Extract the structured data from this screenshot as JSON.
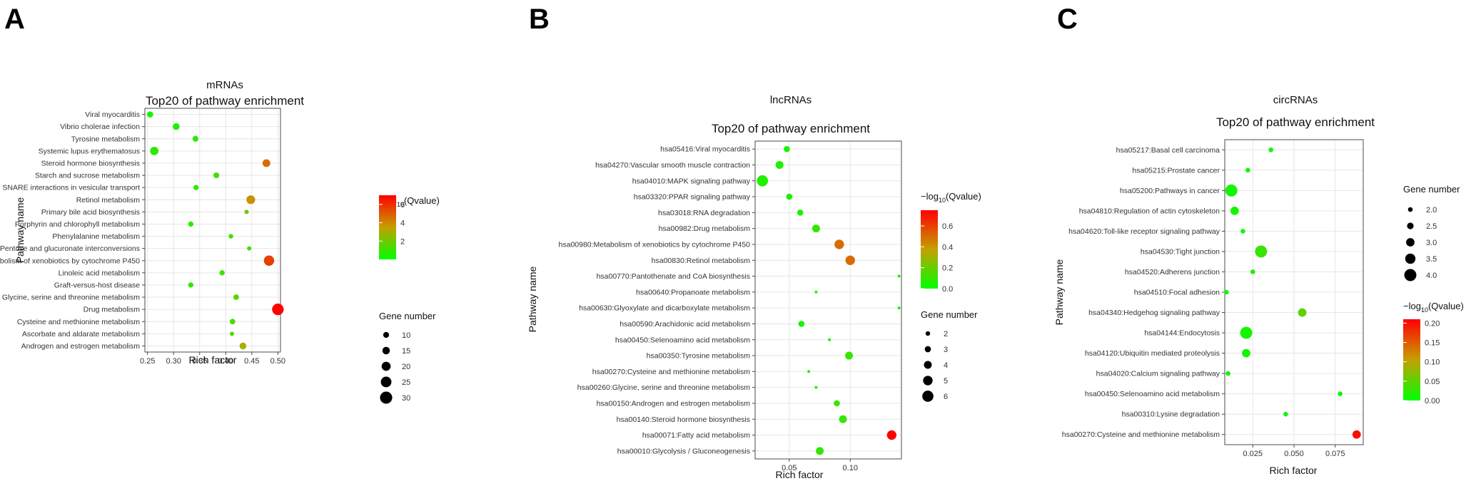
{
  "chart_data": [
    {
      "panel": "A",
      "type": "scatter",
      "title": "mRNAs",
      "subtitle": "Top20 of pathway enrichment",
      "xlabel": "Rich factor",
      "ylabel": "Pathway name",
      "xlim": [
        0.245,
        0.505
      ],
      "xticks": [
        {
          "value": 0.25,
          "label": "0.25"
        },
        {
          "value": 0.3,
          "label": "0.30"
        },
        {
          "value": 0.35,
          "label": "0.35"
        },
        {
          "value": 0.4,
          "label": "0.40"
        },
        {
          "value": 0.45,
          "label": "0.45"
        },
        {
          "value": 0.5,
          "label": "0.50"
        }
      ],
      "color_legend": {
        "title_pre": "−log",
        "title_sub": "10",
        "title_post": "(Qvalue)",
        "min": 0,
        "max": 7,
        "ticks": [
          {
            "value": 2,
            "label": "2"
          },
          {
            "value": 4,
            "label": "4"
          },
          {
            "value": 6,
            "label": "6"
          }
        ]
      },
      "size_legend": {
        "title": "Gene number",
        "min": 5,
        "max": 32,
        "ticks": [
          {
            "value": 10,
            "label": "10"
          },
          {
            "value": 15,
            "label": "15"
          },
          {
            "value": 20,
            "label": "20"
          },
          {
            "value": 25,
            "label": "25"
          },
          {
            "value": 30,
            "label": "30"
          }
        ]
      },
      "points": [
        {
          "pathway": "Viral myocarditis",
          "rich_factor": 0.255,
          "qvalue": 0.4,
          "genes": 11
        },
        {
          "pathway": "Vibrio cholerae infection",
          "rich_factor": 0.305,
          "qvalue": 0.5,
          "genes": 13
        },
        {
          "pathway": "Tyrosine metabolism",
          "rich_factor": 0.342,
          "qvalue": 0.8,
          "genes": 10
        },
        {
          "pathway": "Systemic lupus erythematosus",
          "rich_factor": 0.263,
          "qvalue": 0.8,
          "genes": 18
        },
        {
          "pathway": "Steroid hormone biosynthesis",
          "rich_factor": 0.478,
          "qvalue": 4.6,
          "genes": 16
        },
        {
          "pathway": "Starch and sucrose metabolism",
          "rich_factor": 0.382,
          "qvalue": 1.3,
          "genes": 10
        },
        {
          "pathway": "SNARE interactions in vesicular transport",
          "rich_factor": 0.343,
          "qvalue": 0.8,
          "genes": 8
        },
        {
          "pathway": "Retinol metabolism",
          "rich_factor": 0.448,
          "qvalue": 3.8,
          "genes": 19
        },
        {
          "pathway": "Primary bile acid biosynthesis",
          "rich_factor": 0.44,
          "qvalue": 1.8,
          "genes": 5
        },
        {
          "pathway": "Porphyrin and chlorophyll metabolism",
          "rich_factor": 0.333,
          "qvalue": 0.8,
          "genes": 8
        },
        {
          "pathway": "Phenylalanine metabolism",
          "rich_factor": 0.41,
          "qvalue": 1.0,
          "genes": 6
        },
        {
          "pathway": "Pentose and glucuronate interconversions",
          "rich_factor": 0.445,
          "qvalue": 1.3,
          "genes": 5
        },
        {
          "pathway": "Metabolism of xenobiotics by cytochrome P450",
          "rich_factor": 0.483,
          "qvalue": 5.6,
          "genes": 24
        },
        {
          "pathway": "Linoleic acid metabolism",
          "rich_factor": 0.393,
          "qvalue": 1.0,
          "genes": 8
        },
        {
          "pathway": "Graft-versus-host disease",
          "rich_factor": 0.333,
          "qvalue": 0.8,
          "genes": 8
        },
        {
          "pathway": "Glycine, serine and threonine metabolism",
          "rich_factor": 0.42,
          "qvalue": 1.6,
          "genes": 9
        },
        {
          "pathway": "Drug metabolism",
          "rich_factor": 0.5,
          "qvalue": 7.0,
          "genes": 28
        },
        {
          "pathway": "Cysteine and methionine metabolism",
          "rich_factor": 0.413,
          "qvalue": 1.3,
          "genes": 9
        },
        {
          "pathway": "Ascorbate and aldarate metabolism",
          "rich_factor": 0.412,
          "qvalue": 1.4,
          "genes": 5
        },
        {
          "pathway": "Androgen and estrogen metabolism",
          "rich_factor": 0.433,
          "qvalue": 3.0,
          "genes": 13
        }
      ]
    },
    {
      "panel": "B",
      "type": "scatter",
      "title": "lncRNAs",
      "subtitle": "Top20 of pathway enrichment",
      "xlabel": "Rich factor",
      "ylabel": "Pathway name",
      "xlim": [
        0.022,
        0.142
      ],
      "xticks": [
        {
          "value": 0.05,
          "label": "0.05"
        },
        {
          "value": 0.1,
          "label": "0.10"
        }
      ],
      "color_legend": {
        "title_pre": "−log",
        "title_sub": "10",
        "title_post": "(Qvalue)",
        "min": 0,
        "max": 0.75,
        "ticks": [
          {
            "value": 0,
            "label": "0.0"
          },
          {
            "value": 0.2,
            "label": "0.2"
          },
          {
            "value": 0.4,
            "label": "0.4"
          },
          {
            "value": 0.6,
            "label": "0.6"
          }
        ]
      },
      "size_legend": {
        "title": "Gene number",
        "min": 1,
        "max": 7,
        "ticks": [
          {
            "value": 2,
            "label": "2"
          },
          {
            "value": 3,
            "label": "3"
          },
          {
            "value": 4,
            "label": "4"
          },
          {
            "value": 5,
            "label": "5"
          },
          {
            "value": 6,
            "label": "6"
          }
        ]
      },
      "points": [
        {
          "pathway": "hsa05416:Viral myocarditis",
          "rich_factor": 0.048,
          "qvalue": 0.05,
          "genes": 3
        },
        {
          "pathway": "hsa04270:Vascular smooth muscle contraction",
          "rich_factor": 0.042,
          "qvalue": 0.05,
          "genes": 4
        },
        {
          "pathway": "hsa04010:MAPK signaling pathway",
          "rich_factor": 0.028,
          "qvalue": 0.06,
          "genes": 6
        },
        {
          "pathway": "hsa03320:PPAR signaling pathway",
          "rich_factor": 0.05,
          "qvalue": 0.05,
          "genes": 3
        },
        {
          "pathway": "hsa03018:RNA degradation",
          "rich_factor": 0.059,
          "qvalue": 0.05,
          "genes": 3
        },
        {
          "pathway": "hsa00982:Drug metabolism",
          "rich_factor": 0.072,
          "qvalue": 0.1,
          "genes": 4
        },
        {
          "pathway": "hsa00980:Metabolism of xenobiotics by cytochrome P450",
          "rich_factor": 0.091,
          "qvalue": 0.5,
          "genes": 5
        },
        {
          "pathway": "hsa00830:Retinol metabolism",
          "rich_factor": 0.1,
          "qvalue": 0.5,
          "genes": 5
        },
        {
          "pathway": "hsa00770:Pantothenate and CoA biosynthesis",
          "rich_factor": 0.14,
          "qvalue": 0.05,
          "genes": 1
        },
        {
          "pathway": "hsa00640:Propanoate metabolism",
          "rich_factor": 0.072,
          "qvalue": 0.05,
          "genes": 1
        },
        {
          "pathway": "hsa00630:Glyoxylate and dicarboxylate metabolism",
          "rich_factor": 0.14,
          "qvalue": 0.05,
          "genes": 1
        },
        {
          "pathway": "hsa00590:Arachidonic acid metabolism",
          "rich_factor": 0.06,
          "qvalue": 0.05,
          "genes": 3
        },
        {
          "pathway": "hsa00450:Selenoamino acid metabolism",
          "rich_factor": 0.083,
          "qvalue": 0.05,
          "genes": 1
        },
        {
          "pathway": "hsa00350:Tyrosine metabolism",
          "rich_factor": 0.099,
          "qvalue": 0.1,
          "genes": 4
        },
        {
          "pathway": "hsa00270:Cysteine and methionine metabolism",
          "rich_factor": 0.066,
          "qvalue": 0.05,
          "genes": 1
        },
        {
          "pathway": "hsa00260:Glycine, serine and threonine metabolism",
          "rich_factor": 0.072,
          "qvalue": 0.05,
          "genes": 1
        },
        {
          "pathway": "hsa00150:Androgen and estrogen metabolism",
          "rich_factor": 0.089,
          "qvalue": 0.1,
          "genes": 3
        },
        {
          "pathway": "hsa00140:Steroid hormone biosynthesis",
          "rich_factor": 0.094,
          "qvalue": 0.1,
          "genes": 4
        },
        {
          "pathway": "hsa00071:Fatty acid metabolism",
          "rich_factor": 0.134,
          "qvalue": 0.75,
          "genes": 5
        },
        {
          "pathway": "hsa00010:Glycolysis / Gluconeogenesis",
          "rich_factor": 0.075,
          "qvalue": 0.1,
          "genes": 4
        }
      ]
    },
    {
      "panel": "C",
      "type": "scatter",
      "title": "circRNAs",
      "subtitle": "Top20 of pathway enrichment",
      "xlabel": "Rich factor",
      "ylabel": "Pathway name",
      "xlim": [
        0.008,
        0.092
      ],
      "xticks": [
        {
          "value": 0.025,
          "label": "0.025"
        },
        {
          "value": 0.05,
          "label": "0.050"
        },
        {
          "value": 0.075,
          "label": "0.075"
        }
      ],
      "color_legend": {
        "title_pre": "−log",
        "title_sub": "10",
        "title_post": "(Qvalue)",
        "min": 0,
        "max": 0.21,
        "ticks": [
          {
            "value": 0,
            "label": "0.00"
          },
          {
            "value": 0.05,
            "label": "0.05"
          },
          {
            "value": 0.1,
            "label": "0.10"
          },
          {
            "value": 0.15,
            "label": "0.15"
          },
          {
            "value": 0.2,
            "label": "0.20"
          }
        ]
      },
      "size_legend": {
        "title": "Gene number",
        "min": 1.5,
        "max": 4.2,
        "ticks": [
          {
            "value": 2.0,
            "label": "2.0"
          },
          {
            "value": 2.5,
            "label": "2.5"
          },
          {
            "value": 3.0,
            "label": "3.0"
          },
          {
            "value": 3.5,
            "label": "3.5"
          },
          {
            "value": 4.0,
            "label": "4.0"
          }
        ]
      },
      "points": [
        {
          "pathway": "hsa05217:Basal cell carcinoma",
          "rich_factor": 0.036,
          "qvalue": 0.01,
          "genes": 2.0
        },
        {
          "pathway": "hsa05215:Prostate cancer",
          "rich_factor": 0.022,
          "qvalue": 0.01,
          "genes": 2.0
        },
        {
          "pathway": "hsa05200:Pathways in cancer",
          "rich_factor": 0.012,
          "qvalue": 0.01,
          "genes": 4.0
        },
        {
          "pathway": "hsa04810:Regulation of actin cytoskeleton",
          "rich_factor": 0.014,
          "qvalue": 0.01,
          "genes": 3.0
        },
        {
          "pathway": "hsa04620:Toll-like receptor signaling pathway",
          "rich_factor": 0.019,
          "qvalue": 0.01,
          "genes": 2.0
        },
        {
          "pathway": "hsa04530:Tight junction",
          "rich_factor": 0.03,
          "qvalue": 0.03,
          "genes": 4.0
        },
        {
          "pathway": "hsa04520:Adherens junction",
          "rich_factor": 0.025,
          "qvalue": 0.02,
          "genes": 2.0
        },
        {
          "pathway": "hsa04510:Focal adhesion",
          "rich_factor": 0.009,
          "qvalue": 0.01,
          "genes": 2.0
        },
        {
          "pathway": "hsa04340:Hedgehog signaling pathway",
          "rich_factor": 0.055,
          "qvalue": 0.05,
          "genes": 3.0
        },
        {
          "pathway": "hsa04144:Endocytosis",
          "rich_factor": 0.021,
          "qvalue": 0.01,
          "genes": 4.0
        },
        {
          "pathway": "hsa04120:Ubiquitin mediated proteolysis",
          "rich_factor": 0.021,
          "qvalue": 0.01,
          "genes": 3.0
        },
        {
          "pathway": "hsa04020:Calcium signaling pathway",
          "rich_factor": 0.01,
          "qvalue": 0.01,
          "genes": 2.0
        },
        {
          "pathway": "hsa00450:Selenoamino acid metabolism",
          "rich_factor": 0.078,
          "qvalue": 0.01,
          "genes": 2.0
        },
        {
          "pathway": "hsa00310:Lysine degradation",
          "rich_factor": 0.045,
          "qvalue": 0.01,
          "genes": 2.0
        },
        {
          "pathway": "hsa00270:Cysteine and methionine metabolism",
          "rich_factor": 0.088,
          "qvalue": 0.2,
          "genes": 3.0
        }
      ]
    }
  ],
  "colors": {
    "low": "#00ff00",
    "mid": "#c4a000",
    "high": "#ff0000",
    "grid": "#e6e6e6",
    "axis": "#444444"
  }
}
